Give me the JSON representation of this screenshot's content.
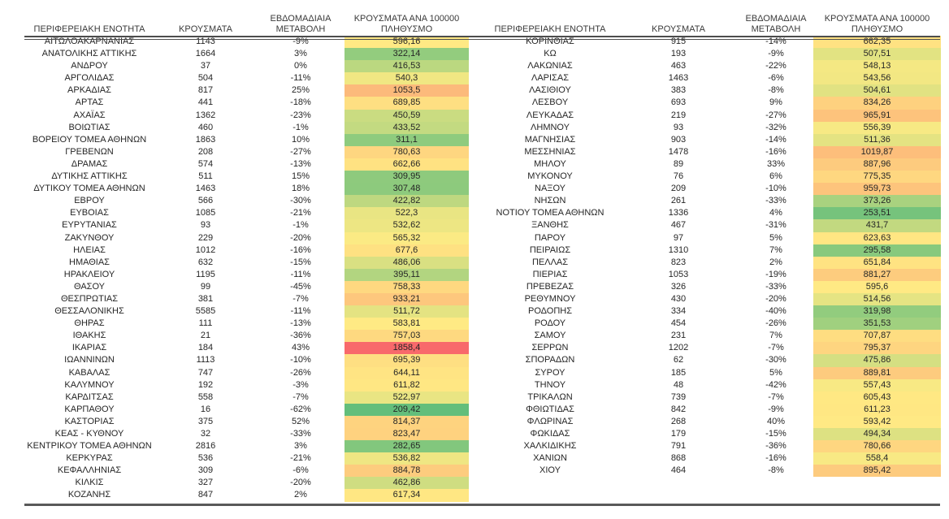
{
  "columns": [
    "ΠΕΡΙΦΕΡΕΙΑΚΗ ΕΝΟΤΗΤΑ",
    "ΚΡΟΥΣΜΑΤΑ",
    "ΕΒΔΟΜΑΔΙΑΙΑ ΜΕΤΑΒΟΛΗ",
    "ΚΡΟΥΣΜΑΤΑ ΑΝΑ 100000 ΠΛΗΘΥΣΜΟ"
  ],
  "color_scale": {
    "min_value": 209.42,
    "mid_value": 574.5,
    "max_value": 1858.4,
    "min_color": "#63BE7B",
    "mid_color": "#FFEB84",
    "max_color": "#F8696B"
  },
  "chart_data": {
    "type": "table",
    "title": "",
    "columns": [
      "ΠΕΡΙΦΕΡΕΙΑΚΗ ΕΝΟΤΗΤΑ",
      "ΚΡΟΥΣΜΑΤΑ",
      "ΕΒΔΟΜΑΔΙΑΙΑ ΜΕΤΑΒΟΛΗ",
      "ΚΡΟΥΣΜΑΤΑ ΑΝΑ 100000 ΠΛΗΘΥΣΜΟ"
    ]
  },
  "tables": [
    {
      "rows": [
        [
          "ΑΙΤΩΛΟΑΚΑΡΝΑΝΙΑΣ",
          "1143",
          "-9%",
          "596,16"
        ],
        [
          "ΑΝΑΤΟΛΙΚΗΣ ΑΤΤΙΚΗΣ",
          "1664",
          "3%",
          "322,14"
        ],
        [
          "ΑΝΔΡΟΥ",
          "37",
          "0%",
          "416,53"
        ],
        [
          "ΑΡΓΟΛΙΔΑΣ",
          "504",
          "-11%",
          "540,3"
        ],
        [
          "ΑΡΚΑΔΙΑΣ",
          "817",
          "25%",
          "1053,5"
        ],
        [
          "ΑΡΤΑΣ",
          "441",
          "-18%",
          "689,85"
        ],
        [
          "ΑΧΑΪΑΣ",
          "1362",
          "-23%",
          "450,59"
        ],
        [
          "ΒΟΙΩΤΙΑΣ",
          "460",
          "-1%",
          "433,52"
        ],
        [
          "ΒΟΡΕΙΟΥ ΤΟΜΕΑ ΑΘΗΝΩΝ",
          "1863",
          "10%",
          "311,1"
        ],
        [
          "ΓΡΕΒΕΝΩΝ",
          "208",
          "-27%",
          "780,63"
        ],
        [
          "ΔΡΑΜΑΣ",
          "574",
          "-13%",
          "662,66"
        ],
        [
          "ΔΥΤΙΚΗΣ ΑΤΤΙΚΗΣ",
          "511",
          "15%",
          "309,95"
        ],
        [
          "ΔΥΤΙΚΟΥ ΤΟΜΕΑ ΑΘΗΝΩΝ",
          "1463",
          "18%",
          "307,48"
        ],
        [
          "ΕΒΡΟΥ",
          "566",
          "-30%",
          "422,82"
        ],
        [
          "ΕΥΒΟΙΑΣ",
          "1085",
          "-21%",
          "522,3"
        ],
        [
          "ΕΥΡΥΤΑΝΙΑΣ",
          "93",
          "-1%",
          "532,62"
        ],
        [
          "ΖΑΚΥΝΘΟΥ",
          "229",
          "-20%",
          "565,32"
        ],
        [
          "ΗΛΕΙΑΣ",
          "1012",
          "-16%",
          "677,6"
        ],
        [
          "ΗΜΑΘΙΑΣ",
          "632",
          "-15%",
          "486,06"
        ],
        [
          "ΗΡΑΚΛΕΙΟΥ",
          "1195",
          "-11%",
          "395,11"
        ],
        [
          "ΘΑΣΟΥ",
          "99",
          "-45%",
          "758,33"
        ],
        [
          "ΘΕΣΠΡΩΤΙΑΣ",
          "381",
          "-7%",
          "933,21"
        ],
        [
          "ΘΕΣΣΑΛΟΝΙΚΗΣ",
          "5585",
          "-11%",
          "511,72"
        ],
        [
          "ΘΗΡΑΣ",
          "111",
          "-13%",
          "583,81"
        ],
        [
          "ΙΘΑΚΗΣ",
          "21",
          "-36%",
          "757,03"
        ],
        [
          "ΙΚΑΡΙΑΣ",
          "184",
          "43%",
          "1858,4"
        ],
        [
          "ΙΩΑΝΝΙΝΩΝ",
          "1113",
          "-10%",
          "695,39"
        ],
        [
          "ΚΑΒΑΛΑΣ",
          "747",
          "-26%",
          "644,11"
        ],
        [
          "ΚΑΛΥΜΝΟΥ",
          "192",
          "-3%",
          "611,82"
        ],
        [
          "ΚΑΡΔΙΤΣΑΣ",
          "558",
          "-7%",
          "522,97"
        ],
        [
          "ΚΑΡΠΑΘΟΥ",
          "16",
          "-62%",
          "209,42"
        ],
        [
          "ΚΑΣΤΟΡΙΑΣ",
          "375",
          "52%",
          "814,37"
        ],
        [
          "ΚΕΑΣ - ΚΥΘΝΟΥ",
          "32",
          "-33%",
          "823,47"
        ],
        [
          "ΚΕΝΤΡΙΚΟΥ ΤΟΜΕΑ ΑΘΗΝΩΝ",
          "2816",
          "3%",
          "282,65"
        ],
        [
          "ΚΕΡΚΥΡΑΣ",
          "536",
          "-21%",
          "536,82"
        ],
        [
          "ΚΕΦΑΛΛΗΝΙΑΣ",
          "309",
          "-6%",
          "884,78"
        ],
        [
          "ΚΙΛΚΙΣ",
          "327",
          "-20%",
          "462,86"
        ],
        [
          "ΚΟΖΑΝΗΣ",
          "847",
          "2%",
          "617,34"
        ]
      ]
    },
    {
      "rows": [
        [
          "ΚΟΡΙΝΘΙΑΣ",
          "915",
          "-14%",
          "662,35"
        ],
        [
          "ΚΩ",
          "193",
          "-9%",
          "507,51"
        ],
        [
          "ΛΑΚΩΝΙΑΣ",
          "463",
          "-22%",
          "548,13"
        ],
        [
          "ΛΑΡΙΣΑΣ",
          "1463",
          "-6%",
          "543,56"
        ],
        [
          "ΛΑΣΙΘΙΟΥ",
          "383",
          "-8%",
          "504,61"
        ],
        [
          "ΛΕΣΒΟΥ",
          "693",
          "9%",
          "834,26"
        ],
        [
          "ΛΕΥΚΑΔΑΣ",
          "219",
          "-27%",
          "965,91"
        ],
        [
          "ΛΗΜΝΟΥ",
          "93",
          "-32%",
          "556,39"
        ],
        [
          "ΜΑΓΝΗΣΙΑΣ",
          "903",
          "-14%",
          "511,36"
        ],
        [
          "ΜΕΣΣΗΝΙΑΣ",
          "1478",
          "-16%",
          "1019,87"
        ],
        [
          "ΜΗΛΟΥ",
          "89",
          "33%",
          "887,96"
        ],
        [
          "ΜΥΚΟΝΟΥ",
          "76",
          "6%",
          "775,35"
        ],
        [
          "ΝΑΞΟΥ",
          "209",
          "-10%",
          "959,73"
        ],
        [
          "ΝΗΣΩΝ",
          "261",
          "-33%",
          "373,26"
        ],
        [
          "ΝΟΤΙΟΥ ΤΟΜΕΑ ΑΘΗΝΩΝ",
          "1336",
          "4%",
          "253,51"
        ],
        [
          "ΞΑΝΘΗΣ",
          "467",
          "-31%",
          "431,7"
        ],
        [
          "ΠΑΡΟΥ",
          "97",
          "5%",
          "623,63"
        ],
        [
          "ΠΕΙΡΑΙΩΣ",
          "1310",
          "7%",
          "295,58"
        ],
        [
          "ΠΕΛΛΑΣ",
          "823",
          "2%",
          "651,84"
        ],
        [
          "ΠΙΕΡΙΑΣ",
          "1053",
          "-19%",
          "881,27"
        ],
        [
          "ΠΡΕΒΕΖΑΣ",
          "326",
          "-33%",
          "595,6"
        ],
        [
          "ΡΕΘΥΜΝΟΥ",
          "430",
          "-20%",
          "514,56"
        ],
        [
          "ΡΟΔΟΠΗΣ",
          "334",
          "-40%",
          "319,98"
        ],
        [
          "ΡΟΔΟΥ",
          "454",
          "-26%",
          "351,53"
        ],
        [
          "ΣΑΜΟΥ",
          "231",
          "7%",
          "707,87"
        ],
        [
          "ΣΕΡΡΩΝ",
          "1202",
          "-7%",
          "795,37"
        ],
        [
          "ΣΠΟΡΑΔΩΝ",
          "62",
          "-30%",
          "475,86"
        ],
        [
          "ΣΥΡΟΥ",
          "185",
          "5%",
          "889,81"
        ],
        [
          "ΤΗΝΟΥ",
          "48",
          "-42%",
          "557,43"
        ],
        [
          "ΤΡΙΚΑΛΩΝ",
          "739",
          "-7%",
          "605,43"
        ],
        [
          "ΦΘΙΩΤΙΔΑΣ",
          "842",
          "-9%",
          "611,23"
        ],
        [
          "ΦΛΩΡΙΝΑΣ",
          "268",
          "40%",
          "593,42"
        ],
        [
          "ΦΩΚΙΔΑΣ",
          "179",
          "-15%",
          "494,34"
        ],
        [
          "ΧΑΛΚΙΔΙΚΗΣ",
          "791",
          "-36%",
          "780,66"
        ],
        [
          "ΧΑΝΙΩΝ",
          "868",
          "-16%",
          "558,4"
        ],
        [
          "ΧΙΟΥ",
          "464",
          "-8%",
          "895,42"
        ]
      ]
    }
  ]
}
